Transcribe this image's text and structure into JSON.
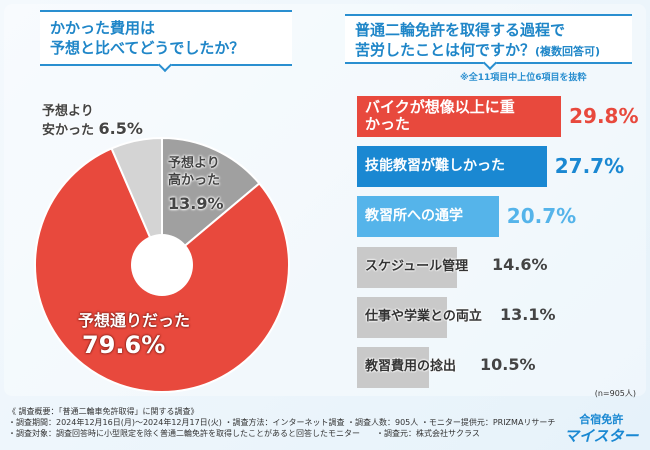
{
  "left_question": {
    "line1": "かかった費用は",
    "line2": "予想と比べてどうでしたか？"
  },
  "right_question": {
    "line1": "普通二輪免許を取得する過程で",
    "line2": "苦労したことは何ですか？",
    "suffix": "(複数回答可)"
  },
  "note": "※全11項目中上位6項目を抜粋",
  "sample_size": "(n=905人)",
  "chart_data": [
    {
      "type": "pie",
      "slices": [
        {
          "label": "予想より高かった",
          "value": 13.9,
          "display": "13.9%",
          "color": "#a0a0a0"
        },
        {
          "label": "予想通りだった",
          "value": 79.6,
          "display": "79.6%",
          "color": "#e8493d"
        },
        {
          "label": "予想より安かった",
          "value": 6.5,
          "display": "6.5%",
          "color": "#d4d4d4"
        }
      ]
    },
    {
      "type": "bar",
      "orientation": "horizontal",
      "categories": [
        "バイクが想像以上に重かった",
        "技能教習が難しかった",
        "教習所への通学",
        "スケジュール管理",
        "仕事や学業との両立",
        "教習費用の捻出"
      ],
      "values": [
        29.8,
        27.7,
        20.7,
        14.6,
        13.1,
        10.5
      ],
      "display": [
        "29.8%",
        "27.7%",
        "20.7%",
        "14.6%",
        "13.1%",
        "10.5%"
      ],
      "colors": [
        "#e8493d",
        "#1a88d2",
        "#55b4ea",
        "#c9c9c9",
        "#c9c9c9",
        "#c9c9c9"
      ],
      "value_colors": [
        "#e8493d",
        "#1a88d2",
        "#55b4ea",
        "#444444",
        "#444444",
        "#444444"
      ]
    }
  ],
  "footer": {
    "line1": "《 調査概要：「普通二輪車免許取得」に関する調査》",
    "line2": "・調査期間：2024年12月16日(月)～2024年12月17日(火) ・調査方法：インターネット調査 ・調査人数：905人 ・モニター提供元：PRIZMAリサーチ",
    "line3": "・調査対象：調査回答時に小型限定を除く普通二輪免許を取得したことがあると回答したモニター　　・調査元：株式会社サクラス"
  },
  "logo": {
    "line1": "合宿免許",
    "line2": "マイスター"
  }
}
